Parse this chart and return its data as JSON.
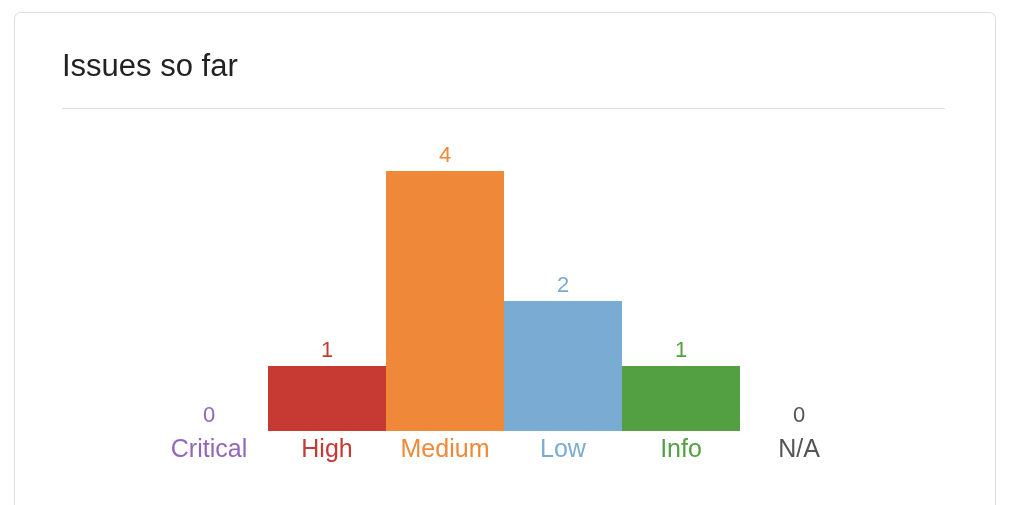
{
  "chart_data": {
    "type": "bar",
    "title": "Issues so far",
    "categories": [
      "Critical",
      "High",
      "Medium",
      "Low",
      "Info",
      "N/A"
    ],
    "values": [
      0,
      1,
      4,
      2,
      1,
      0
    ],
    "colors": [
      "#9366bd",
      "#c63a33",
      "#ef8939",
      "#7aabd3",
      "#53a042",
      "#555555"
    ],
    "data_labels": true
  }
}
